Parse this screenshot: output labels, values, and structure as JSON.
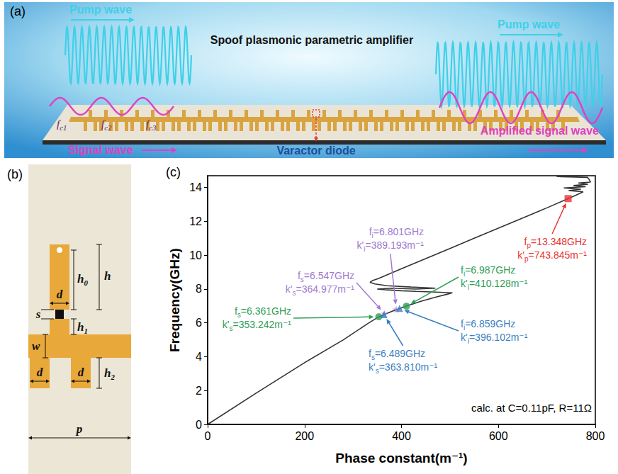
{
  "panel_a": {
    "letter": "(a)",
    "title": "Spoof plasmonic parametric amplifier",
    "pump_labels": [
      "Pump wave",
      "Pump wave"
    ],
    "signal_label": "Signal wave",
    "amplified_label": "Amplified signal wave",
    "diode_label": "Varactor diode",
    "frequency_labels": [
      {
        "text": "f",
        "sub": "c1"
      },
      {
        "text": "f",
        "sub": "c2"
      },
      {
        "text": "f",
        "sub": "c3"
      }
    ]
  },
  "panel_b": {
    "letter": "(b)",
    "dimension_labels": [
      {
        "text": "h"
      },
      {
        "text": "h",
        "sub": "0"
      },
      {
        "text": "d"
      },
      {
        "text": "s"
      },
      {
        "text": "h",
        "sub": "1"
      },
      {
        "text": "w"
      },
      {
        "text": "d"
      },
      {
        "text": "d"
      },
      {
        "text": "h",
        "sub": "2"
      },
      {
        "text": "p"
      }
    ]
  },
  "chart_data": {
    "type": "line",
    "letter": "(c)",
    "x_label": "Phase constant(m⁻¹)",
    "y_label": "Frequency(GHz)",
    "xlim": [
      0,
      800
    ],
    "ylim": [
      0,
      14.7
    ],
    "xticks": [
      0,
      200,
      400,
      600,
      800
    ],
    "yticks": [
      0,
      2,
      4,
      6,
      8,
      10,
      12,
      14
    ],
    "grid": false,
    "color": "#333333",
    "x": [
      0,
      100,
      200,
      280,
      330,
      353,
      380,
      410,
      440,
      470,
      495,
      505,
      470,
      430,
      400,
      370,
      350,
      380,
      430,
      470,
      420,
      370,
      345,
      335,
      340,
      352,
      400,
      450,
      500,
      550,
      600,
      650,
      700,
      740,
      760,
      775,
      745,
      770,
      735,
      780,
      755,
      785,
      765,
      790,
      788,
      784,
      760,
      730,
      720
    ],
    "values": [
      0,
      1.85,
      3.65,
      5.0,
      5.95,
      6.36,
      6.68,
      6.99,
      7.28,
      7.52,
      7.7,
      7.78,
      7.82,
      7.86,
      7.9,
      7.95,
      8.0,
      8.05,
      8.0,
      8.05,
      8.12,
      8.2,
      8.3,
      8.4,
      8.5,
      8.62,
      9.2,
      9.8,
      10.4,
      11.0,
      11.6,
      12.2,
      12.8,
      13.3,
      13.55,
      13.75,
      13.82,
      13.9,
      13.98,
      14.05,
      14.12,
      14.2,
      14.27,
      14.32,
      14.45,
      14.6,
      14.62,
      14.64,
      14.66
    ],
    "label_parts": {
      "f_symbol": "f",
      "k_symbol": "k'",
      "sign": "=",
      "f_unit": "GHz",
      "k_unit": "m⁻¹"
    },
    "annotations": [
      {
        "color": "#e8342f",
        "marker": "square",
        "points": [
          {
            "sub": "p",
            "f": 13.348,
            "k": 743.845
          }
        ]
      },
      {
        "color": "#a07ad0",
        "marker": "star",
        "points": [
          {
            "sub": "s",
            "f": 6.547,
            "k": 364.977
          },
          {
            "sub": "i",
            "f": 6.801,
            "k": 389.193
          }
        ]
      },
      {
        "color": "#2e9e57",
        "marker": "circle",
        "points": [
          {
            "sub": "s",
            "f": 6.361,
            "k": 353.242
          },
          {
            "sub": "i",
            "f": 6.987,
            "k": 410.128
          }
        ]
      },
      {
        "color": "#3a7fc1",
        "marker": "triangle",
        "points": [
          {
            "sub": "s",
            "f": 6.489,
            "k": 363.81,
            "k_label": "363.810"
          },
          {
            "sub": "i",
            "f": 6.859,
            "k": 396.102
          }
        ]
      }
    ],
    "condition_label": "calc. at C=0.11pF, R=11Ω"
  }
}
